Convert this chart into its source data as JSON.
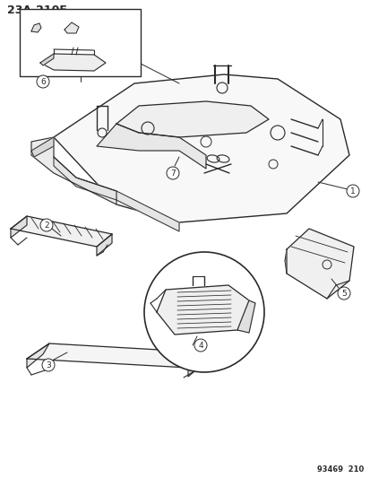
{
  "title": "23A-210F",
  "footer": "93469  210",
  "bg_color": "#ffffff",
  "line_color": "#2a2a2a",
  "figsize": [
    4.14,
    5.33
  ],
  "dpi": 100
}
